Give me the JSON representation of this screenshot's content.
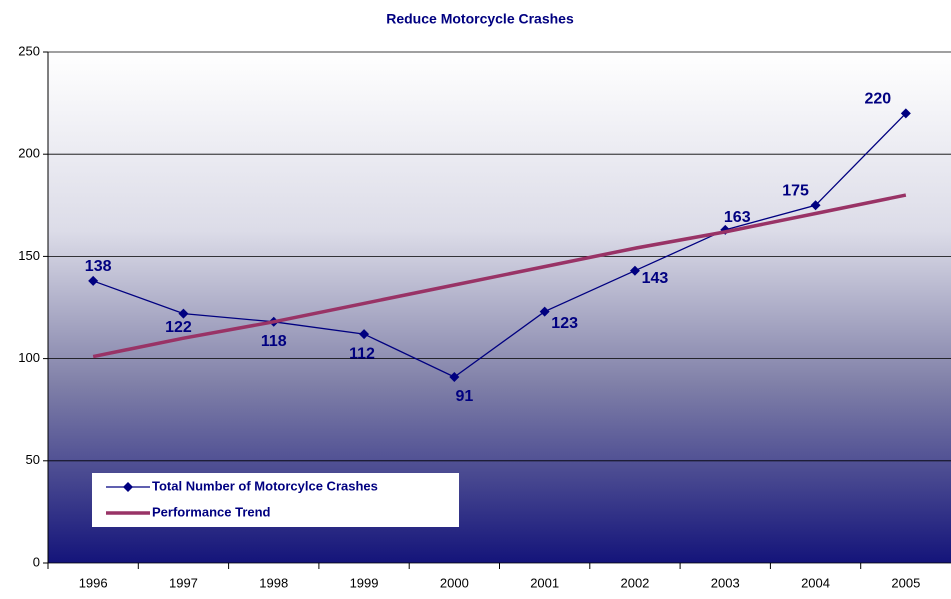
{
  "chart_data": {
    "type": "line",
    "title": "Reduce Motorcycle Crashes",
    "categories": [
      "1996",
      "1997",
      "1998",
      "1999",
      "2000",
      "2001",
      "2002",
      "2003",
      "2004",
      "2005"
    ],
    "series": [
      {
        "name": "Total Number of Motorcylce Crashes",
        "color": "#000080",
        "values": [
          138,
          122,
          118,
          112,
          91,
          123,
          143,
          163,
          175,
          220
        ],
        "markers": true,
        "data_labels": true
      },
      {
        "name": "Performance Trend",
        "color": "#993366",
        "values": [
          101,
          110,
          118,
          127,
          136,
          145,
          154,
          162,
          171,
          180
        ],
        "markers": false,
        "data_labels": false
      }
    ],
    "ylim": [
      0,
      250
    ],
    "yticks": [
      0,
      50,
      100,
      150,
      200,
      250
    ],
    "grid": true,
    "legend": "lower left"
  }
}
